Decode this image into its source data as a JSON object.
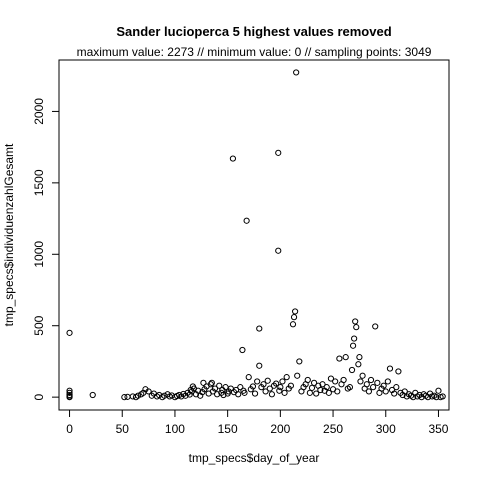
{
  "chart_data": {
    "type": "scatter",
    "title": "Sander lucioperca  5 highest values removed",
    "subtitle": "maximum value: 2273  //  minimum value: 0  // sampling points: 3049",
    "xlabel": "tmp_specs$day_of_year",
    "ylabel": "tmp_specs$individuenzahlGesamt",
    "xlim": [
      -10,
      360
    ],
    "ylim": [
      -90,
      2360
    ],
    "x_ticks": [
      0,
      50,
      100,
      150,
      200,
      250,
      300,
      350
    ],
    "y_ticks": [
      0,
      500,
      1000,
      1500,
      2000
    ],
    "point_style": "open-circle",
    "grid": false,
    "legend": "none",
    "points": [
      [
        0,
        450
      ],
      [
        0,
        45
      ],
      [
        0,
        30
      ],
      [
        0,
        15
      ],
      [
        0,
        5
      ],
      [
        0,
        0
      ],
      [
        22,
        15
      ],
      [
        52,
        0
      ],
      [
        55,
        2
      ],
      [
        60,
        5
      ],
      [
        63,
        0
      ],
      [
        65,
        10
      ],
      [
        68,
        20
      ],
      [
        70,
        30
      ],
      [
        72,
        55
      ],
      [
        75,
        40
      ],
      [
        78,
        10
      ],
      [
        80,
        25
      ],
      [
        83,
        5
      ],
      [
        85,
        15
      ],
      [
        88,
        0
      ],
      [
        90,
        10
      ],
      [
        93,
        20
      ],
      [
        95,
        5
      ],
      [
        97,
        12
      ],
      [
        100,
        0
      ],
      [
        102,
        8
      ],
      [
        104,
        15
      ],
      [
        106,
        5
      ],
      [
        108,
        22
      ],
      [
        110,
        10
      ],
      [
        112,
        30
      ],
      [
        114,
        18
      ],
      [
        115,
        50
      ],
      [
        116,
        40
      ],
      [
        117,
        75
      ],
      [
        118,
        60
      ],
      [
        120,
        20
      ],
      [
        122,
        45
      ],
      [
        124,
        10
      ],
      [
        126,
        35
      ],
      [
        127,
        100
      ],
      [
        128,
        55
      ],
      [
        130,
        75
      ],
      [
        132,
        25
      ],
      [
        134,
        90
      ],
      [
        135,
        100
      ],
      [
        136,
        40
      ],
      [
        138,
        60
      ],
      [
        140,
        20
      ],
      [
        142,
        80
      ],
      [
        144,
        30
      ],
      [
        145,
        50
      ],
      [
        146,
        15
      ],
      [
        148,
        70
      ],
      [
        150,
        25
      ],
      [
        151,
        40
      ],
      [
        153,
        60
      ],
      [
        155,
        1670
      ],
      [
        156,
        35
      ],
      [
        158,
        50
      ],
      [
        160,
        20
      ],
      [
        162,
        70
      ],
      [
        164,
        330
      ],
      [
        165,
        45
      ],
      [
        166,
        30
      ],
      [
        168,
        1235
      ],
      [
        170,
        140
      ],
      [
        172,
        55
      ],
      [
        174,
        75
      ],
      [
        176,
        25
      ],
      [
        178,
        110
      ],
      [
        180,
        480
      ],
      [
        180,
        220
      ],
      [
        182,
        70
      ],
      [
        184,
        90
      ],
      [
        186,
        40
      ],
      [
        188,
        115
      ],
      [
        190,
        60
      ],
      [
        192,
        20
      ],
      [
        194,
        80
      ],
      [
        196,
        95
      ],
      [
        198,
        1710
      ],
      [
        198,
        1025
      ],
      [
        199,
        45
      ],
      [
        200,
        70
      ],
      [
        202,
        110
      ],
      [
        204,
        30
      ],
      [
        206,
        140
      ],
      [
        208,
        60
      ],
      [
        210,
        80
      ],
      [
        212,
        510
      ],
      [
        213,
        560
      ],
      [
        214,
        600
      ],
      [
        215,
        2273
      ],
      [
        216,
        150
      ],
      [
        218,
        250
      ],
      [
        220,
        40
      ],
      [
        222,
        70
      ],
      [
        224,
        90
      ],
      [
        226,
        120
      ],
      [
        228,
        30
      ],
      [
        230,
        65
      ],
      [
        232,
        100
      ],
      [
        234,
        25
      ],
      [
        236,
        80
      ],
      [
        238,
        50
      ],
      [
        240,
        90
      ],
      [
        242,
        45
      ],
      [
        244,
        70
      ],
      [
        246,
        30
      ],
      [
        248,
        130
      ],
      [
        250,
        55
      ],
      [
        252,
        110
      ],
      [
        254,
        40
      ],
      [
        256,
        270
      ],
      [
        258,
        90
      ],
      [
        260,
        120
      ],
      [
        262,
        280
      ],
      [
        264,
        60
      ],
      [
        266,
        70
      ],
      [
        268,
        190
      ],
      [
        269,
        360
      ],
      [
        270,
        410
      ],
      [
        271,
        530
      ],
      [
        272,
        490
      ],
      [
        274,
        230
      ],
      [
        275,
        280
      ],
      [
        276,
        110
      ],
      [
        278,
        150
      ],
      [
        280,
        60
      ],
      [
        282,
        90
      ],
      [
        284,
        40
      ],
      [
        286,
        120
      ],
      [
        288,
        70
      ],
      [
        290,
        495
      ],
      [
        292,
        100
      ],
      [
        294,
        30
      ],
      [
        296,
        60
      ],
      [
        298,
        80
      ],
      [
        300,
        40
      ],
      [
        302,
        110
      ],
      [
        304,
        200
      ],
      [
        306,
        50
      ],
      [
        308,
        25
      ],
      [
        310,
        70
      ],
      [
        312,
        180
      ],
      [
        314,
        30
      ],
      [
        316,
        15
      ],
      [
        318,
        40
      ],
      [
        320,
        5
      ],
      [
        322,
        20
      ],
      [
        324,
        10
      ],
      [
        326,
        0
      ],
      [
        328,
        30
      ],
      [
        330,
        5
      ],
      [
        332,
        15
      ],
      [
        334,
        0
      ],
      [
        336,
        20
      ],
      [
        338,
        10
      ],
      [
        340,
        0
      ],
      [
        342,
        25
      ],
      [
        344,
        5
      ],
      [
        346,
        10
      ],
      [
        348,
        0
      ],
      [
        350,
        45
      ],
      [
        352,
        0
      ],
      [
        354,
        5
      ]
    ]
  }
}
